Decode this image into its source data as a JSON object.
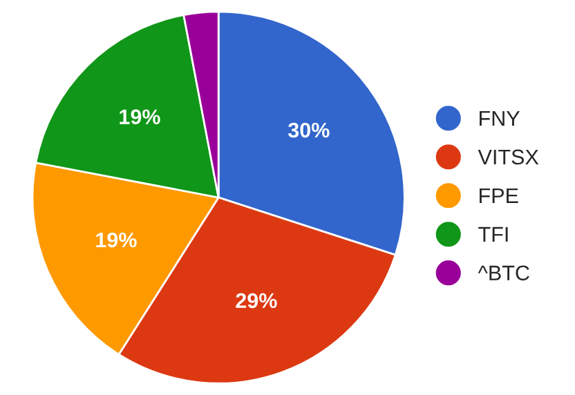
{
  "chart_data": {
    "type": "pie",
    "categories": [
      "FNY",
      "VITSX",
      "FPE",
      "TFI",
      "^BTC"
    ],
    "values": [
      30,
      29,
      19,
      19,
      3
    ],
    "value_labels": [
      "30%",
      "29%",
      "19%",
      "19%",
      null
    ],
    "colors": [
      "#3366cc",
      "#dc3912",
      "#ff9900",
      "#109618",
      "#990099"
    ],
    "legend": "right"
  }
}
